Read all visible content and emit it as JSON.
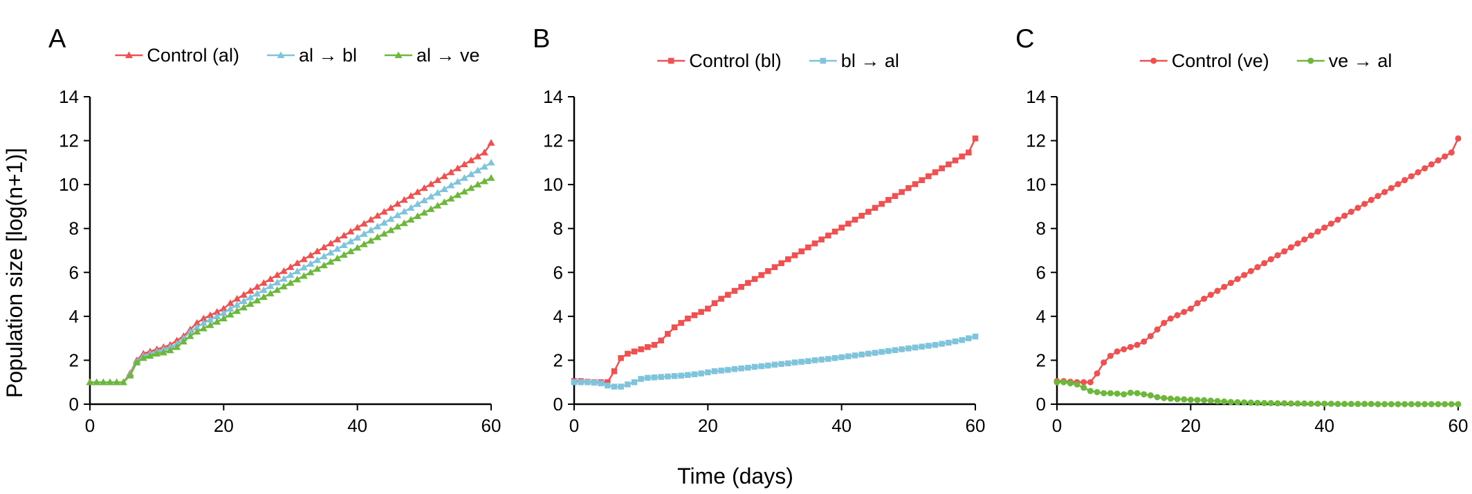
{
  "figure": {
    "xlabel": "Time (days)",
    "ylabel": "Population size [log(n+1)]"
  },
  "chart_data": [
    {
      "type": "line",
      "panel_label": "A",
      "xlim": [
        0,
        60
      ],
      "ylim": [
        0,
        14
      ],
      "xticks": [
        0,
        20,
        40,
        60
      ],
      "yticks": [
        0,
        2,
        4,
        6,
        8,
        10,
        12,
        14
      ],
      "grid": false,
      "legend_position": "top",
      "series": [
        {
          "name": "Control (al)",
          "color": "#f05050",
          "marker": "triangle",
          "x": [
            0,
            1,
            2,
            3,
            4,
            5,
            6,
            7,
            8,
            9,
            10,
            11,
            12,
            13,
            14,
            15,
            16,
            17,
            18,
            19,
            20,
            21,
            22,
            23,
            24,
            25,
            26,
            27,
            28,
            29,
            30,
            31,
            32,
            33,
            34,
            35,
            36,
            37,
            38,
            39,
            40,
            41,
            42,
            43,
            44,
            45,
            46,
            47,
            48,
            49,
            50,
            51,
            52,
            53,
            54,
            55,
            56,
            57,
            58,
            59,
            60
          ],
          "y": [
            1,
            1,
            1,
            1,
            1,
            1,
            1.4,
            2.0,
            2.3,
            2.4,
            2.5,
            2.6,
            2.7,
            2.9,
            3.1,
            3.4,
            3.7,
            3.9,
            4.05,
            4.2,
            4.35,
            4.6,
            4.8,
            4.98,
            5.16,
            5.34,
            5.52,
            5.7,
            5.88,
            6.06,
            6.24,
            6.42,
            6.6,
            6.78,
            6.96,
            7.14,
            7.32,
            7.5,
            7.68,
            7.86,
            8.04,
            8.22,
            8.4,
            8.58,
            8.76,
            8.94,
            9.12,
            9.3,
            9.48,
            9.66,
            9.84,
            10.02,
            10.2,
            10.38,
            10.56,
            10.74,
            10.92,
            11.1,
            11.28,
            11.46,
            11.9
          ]
        },
        {
          "name": "al → bl",
          "color": "#7ec4dc",
          "marker": "triangle",
          "x": [
            0,
            1,
            2,
            3,
            4,
            5,
            6,
            7,
            8,
            9,
            10,
            11,
            12,
            13,
            14,
            15,
            16,
            17,
            18,
            19,
            20,
            21,
            22,
            23,
            24,
            25,
            26,
            27,
            28,
            29,
            30,
            31,
            32,
            33,
            34,
            35,
            36,
            37,
            38,
            39,
            40,
            41,
            42,
            43,
            44,
            45,
            46,
            47,
            48,
            49,
            50,
            51,
            52,
            53,
            54,
            55,
            56,
            57,
            58,
            59,
            60
          ],
          "y": [
            1,
            1,
            1,
            1,
            1,
            1,
            1.35,
            1.95,
            2.2,
            2.3,
            2.4,
            2.5,
            2.6,
            2.75,
            3.0,
            3.3,
            3.5,
            3.7,
            3.85,
            4.0,
            4.15,
            4.35,
            4.52,
            4.69,
            4.86,
            5.03,
            5.2,
            5.37,
            5.54,
            5.71,
            5.88,
            6.05,
            6.22,
            6.39,
            6.56,
            6.73,
            6.9,
            7.07,
            7.24,
            7.41,
            7.58,
            7.75,
            7.92,
            8.09,
            8.26,
            8.43,
            8.6,
            8.77,
            8.94,
            9.11,
            9.28,
            9.45,
            9.62,
            9.79,
            9.96,
            10.13,
            10.3,
            10.47,
            10.64,
            10.81,
            11.0
          ]
        },
        {
          "name": "al → ve",
          "color": "#6cb83a",
          "marker": "triangle",
          "x": [
            0,
            1,
            2,
            3,
            4,
            5,
            6,
            7,
            8,
            9,
            10,
            11,
            12,
            13,
            14,
            15,
            16,
            17,
            18,
            19,
            20,
            21,
            22,
            23,
            24,
            25,
            26,
            27,
            28,
            29,
            30,
            31,
            32,
            33,
            34,
            35,
            36,
            37,
            38,
            39,
            40,
            41,
            42,
            43,
            44,
            45,
            46,
            47,
            48,
            49,
            50,
            51,
            52,
            53,
            54,
            55,
            56,
            57,
            58,
            59,
            60
          ],
          "y": [
            1,
            1,
            1,
            1,
            1,
            1,
            1.3,
            1.9,
            2.1,
            2.2,
            2.3,
            2.35,
            2.45,
            2.6,
            2.85,
            3.1,
            3.3,
            3.45,
            3.6,
            3.75,
            3.9,
            4.08,
            4.24,
            4.4,
            4.56,
            4.72,
            4.88,
            5.04,
            5.2,
            5.36,
            5.52,
            5.68,
            5.84,
            6.0,
            6.16,
            6.32,
            6.48,
            6.64,
            6.8,
            6.96,
            7.12,
            7.28,
            7.44,
            7.6,
            7.76,
            7.92,
            8.08,
            8.24,
            8.4,
            8.56,
            8.72,
            8.88,
            9.04,
            9.2,
            9.36,
            9.52,
            9.68,
            9.84,
            10.0,
            10.15,
            10.3
          ]
        }
      ]
    },
    {
      "type": "line",
      "panel_label": "B",
      "xlim": [
        0,
        60
      ],
      "ylim": [
        0,
        14
      ],
      "xticks": [
        0,
        20,
        40,
        60
      ],
      "yticks": [
        0,
        2,
        4,
        6,
        8,
        10,
        12,
        14
      ],
      "grid": false,
      "legend_position": "top",
      "series": [
        {
          "name": "Control (bl)",
          "color": "#f05050",
          "marker": "square",
          "x": [
            0,
            1,
            2,
            3,
            4,
            5,
            6,
            7,
            8,
            9,
            10,
            11,
            12,
            13,
            14,
            15,
            16,
            17,
            18,
            19,
            20,
            21,
            22,
            23,
            24,
            25,
            26,
            27,
            28,
            29,
            30,
            31,
            32,
            33,
            34,
            35,
            36,
            37,
            38,
            39,
            40,
            41,
            42,
            43,
            44,
            45,
            46,
            47,
            48,
            49,
            50,
            51,
            52,
            53,
            54,
            55,
            56,
            57,
            58,
            59,
            60
          ],
          "y": [
            1.05,
            1.05,
            1.02,
            1.0,
            1.0,
            1.0,
            1.5,
            2.1,
            2.3,
            2.4,
            2.5,
            2.6,
            2.7,
            2.9,
            3.2,
            3.5,
            3.7,
            3.9,
            4.05,
            4.2,
            4.35,
            4.6,
            4.8,
            4.98,
            5.16,
            5.34,
            5.52,
            5.7,
            5.88,
            6.06,
            6.24,
            6.42,
            6.6,
            6.78,
            6.96,
            7.14,
            7.32,
            7.5,
            7.68,
            7.86,
            8.04,
            8.22,
            8.4,
            8.58,
            8.76,
            8.94,
            9.12,
            9.3,
            9.48,
            9.66,
            9.84,
            10.02,
            10.2,
            10.38,
            10.56,
            10.74,
            10.92,
            11.1,
            11.28,
            11.46,
            12.1
          ]
        },
        {
          "name": "bl → al",
          "color": "#7ec4dc",
          "marker": "square",
          "x": [
            0,
            1,
            2,
            3,
            4,
            5,
            6,
            7,
            8,
            9,
            10,
            11,
            12,
            13,
            14,
            15,
            16,
            17,
            18,
            19,
            20,
            21,
            22,
            23,
            24,
            25,
            26,
            27,
            28,
            29,
            30,
            31,
            32,
            33,
            34,
            35,
            36,
            37,
            38,
            39,
            40,
            41,
            42,
            43,
            44,
            45,
            46,
            47,
            48,
            49,
            50,
            51,
            52,
            53,
            54,
            55,
            56,
            57,
            58,
            59,
            60
          ],
          "y": [
            1.0,
            1.0,
            1.0,
            0.98,
            0.95,
            0.85,
            0.8,
            0.8,
            0.9,
            1.0,
            1.15,
            1.2,
            1.22,
            1.24,
            1.26,
            1.28,
            1.3,
            1.33,
            1.36,
            1.4,
            1.45,
            1.5,
            1.53,
            1.56,
            1.6,
            1.63,
            1.66,
            1.7,
            1.73,
            1.76,
            1.8,
            1.83,
            1.86,
            1.9,
            1.93,
            1.96,
            2.0,
            2.03,
            2.06,
            2.1,
            2.14,
            2.18,
            2.22,
            2.26,
            2.3,
            2.34,
            2.38,
            2.42,
            2.46,
            2.5,
            2.54,
            2.58,
            2.62,
            2.66,
            2.7,
            2.75,
            2.8,
            2.86,
            2.92,
            3.0,
            3.08
          ]
        }
      ]
    },
    {
      "type": "line",
      "panel_label": "C",
      "xlim": [
        0,
        60
      ],
      "ylim": [
        0,
        14
      ],
      "xticks": [
        0,
        20,
        40,
        60
      ],
      "yticks": [
        0,
        2,
        4,
        6,
        8,
        10,
        12,
        14
      ],
      "grid": false,
      "legend_position": "top",
      "series": [
        {
          "name": "Control (ve)",
          "color": "#f05050",
          "marker": "circle",
          "x": [
            0,
            1,
            2,
            3,
            4,
            5,
            6,
            7,
            8,
            9,
            10,
            11,
            12,
            13,
            14,
            15,
            16,
            17,
            18,
            19,
            20,
            21,
            22,
            23,
            24,
            25,
            26,
            27,
            28,
            29,
            30,
            31,
            32,
            33,
            34,
            35,
            36,
            37,
            38,
            39,
            40,
            41,
            42,
            43,
            44,
            45,
            46,
            47,
            48,
            49,
            50,
            51,
            52,
            53,
            54,
            55,
            56,
            57,
            58,
            59,
            60
          ],
          "y": [
            1.05,
            1.05,
            1.02,
            1.0,
            1.0,
            1.0,
            1.4,
            1.9,
            2.2,
            2.4,
            2.5,
            2.6,
            2.7,
            2.85,
            3.1,
            3.4,
            3.7,
            3.9,
            4.05,
            4.2,
            4.35,
            4.6,
            4.8,
            4.98,
            5.16,
            5.34,
            5.52,
            5.7,
            5.88,
            6.06,
            6.24,
            6.42,
            6.6,
            6.78,
            6.96,
            7.14,
            7.32,
            7.5,
            7.68,
            7.86,
            8.04,
            8.22,
            8.4,
            8.58,
            8.76,
            8.94,
            9.12,
            9.3,
            9.48,
            9.66,
            9.84,
            10.02,
            10.2,
            10.38,
            10.56,
            10.74,
            10.92,
            11.1,
            11.28,
            11.46,
            12.1
          ]
        },
        {
          "name": "ve → al",
          "color": "#6cb83a",
          "marker": "circle",
          "x": [
            0,
            1,
            2,
            3,
            4,
            5,
            6,
            7,
            8,
            9,
            10,
            11,
            12,
            13,
            14,
            15,
            16,
            17,
            18,
            19,
            20,
            21,
            22,
            23,
            24,
            25,
            26,
            27,
            28,
            29,
            30,
            31,
            32,
            33,
            34,
            35,
            36,
            37,
            38,
            39,
            40,
            41,
            42,
            43,
            44,
            45,
            46,
            47,
            48,
            49,
            50,
            51,
            52,
            53,
            54,
            55,
            56,
            57,
            58,
            59,
            60
          ],
          "y": [
            1.0,
            1.0,
            0.95,
            0.9,
            0.75,
            0.6,
            0.55,
            0.5,
            0.5,
            0.48,
            0.45,
            0.52,
            0.5,
            0.45,
            0.4,
            0.32,
            0.28,
            0.25,
            0.23,
            0.22,
            0.2,
            0.19,
            0.18,
            0.16,
            0.14,
            0.12,
            0.1,
            0.09,
            0.08,
            0.07,
            0.06,
            0.05,
            0.05,
            0.04,
            0.04,
            0.03,
            0.03,
            0.03,
            0.02,
            0.02,
            0.02,
            0.02,
            0.01,
            0.01,
            0.01,
            0.01,
            0.01,
            0.01,
            0,
            0,
            0,
            0,
            0,
            0,
            0,
            0,
            0,
            0,
            0,
            0,
            0
          ]
        }
      ]
    }
  ]
}
